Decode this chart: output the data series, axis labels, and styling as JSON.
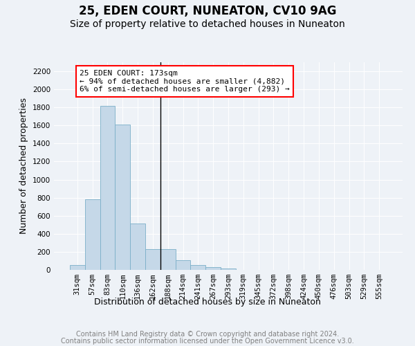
{
  "title1": "25, EDEN COURT, NUNEATON, CV10 9AG",
  "title2": "Size of property relative to detached houses in Nuneaton",
  "xlabel": "Distribution of detached houses by size in Nuneaton",
  "ylabel": "Number of detached properties",
  "categories": [
    "31sqm",
    "57sqm",
    "83sqm",
    "110sqm",
    "136sqm",
    "162sqm",
    "188sqm",
    "214sqm",
    "241sqm",
    "267sqm",
    "293sqm",
    "319sqm",
    "345sqm",
    "372sqm",
    "398sqm",
    "424sqm",
    "450sqm",
    "476sqm",
    "503sqm",
    "529sqm",
    "555sqm"
  ],
  "values": [
    50,
    780,
    1820,
    1610,
    510,
    230,
    230,
    110,
    55,
    30,
    15,
    0,
    0,
    0,
    0,
    0,
    0,
    0,
    0,
    0,
    0
  ],
  "bar_color": "#c5d8e8",
  "bar_edgecolor": "#7aafc8",
  "annotation_line1": "25 EDEN COURT: 173sqm",
  "annotation_line2": "← 94% of detached houses are smaller (4,882)",
  "annotation_line3": "6% of semi-detached houses are larger (293) →",
  "annotation_box_color": "white",
  "annotation_box_edgecolor": "red",
  "vline_color": "black",
  "footer1": "Contains HM Land Registry data © Crown copyright and database right 2024.",
  "footer2": "Contains public sector information licensed under the Open Government Licence v3.0.",
  "ylim": [
    0,
    2300
  ],
  "yticks": [
    0,
    200,
    400,
    600,
    800,
    1000,
    1200,
    1400,
    1600,
    1800,
    2000,
    2200
  ],
  "vline_x": 5.5,
  "bg_color": "#eef2f7",
  "grid_color": "#ffffff",
  "title1_fontsize": 12,
  "title2_fontsize": 10,
  "axis_label_fontsize": 9,
  "tick_fontsize": 7.5,
  "annot_fontsize": 8,
  "footer_fontsize": 7
}
